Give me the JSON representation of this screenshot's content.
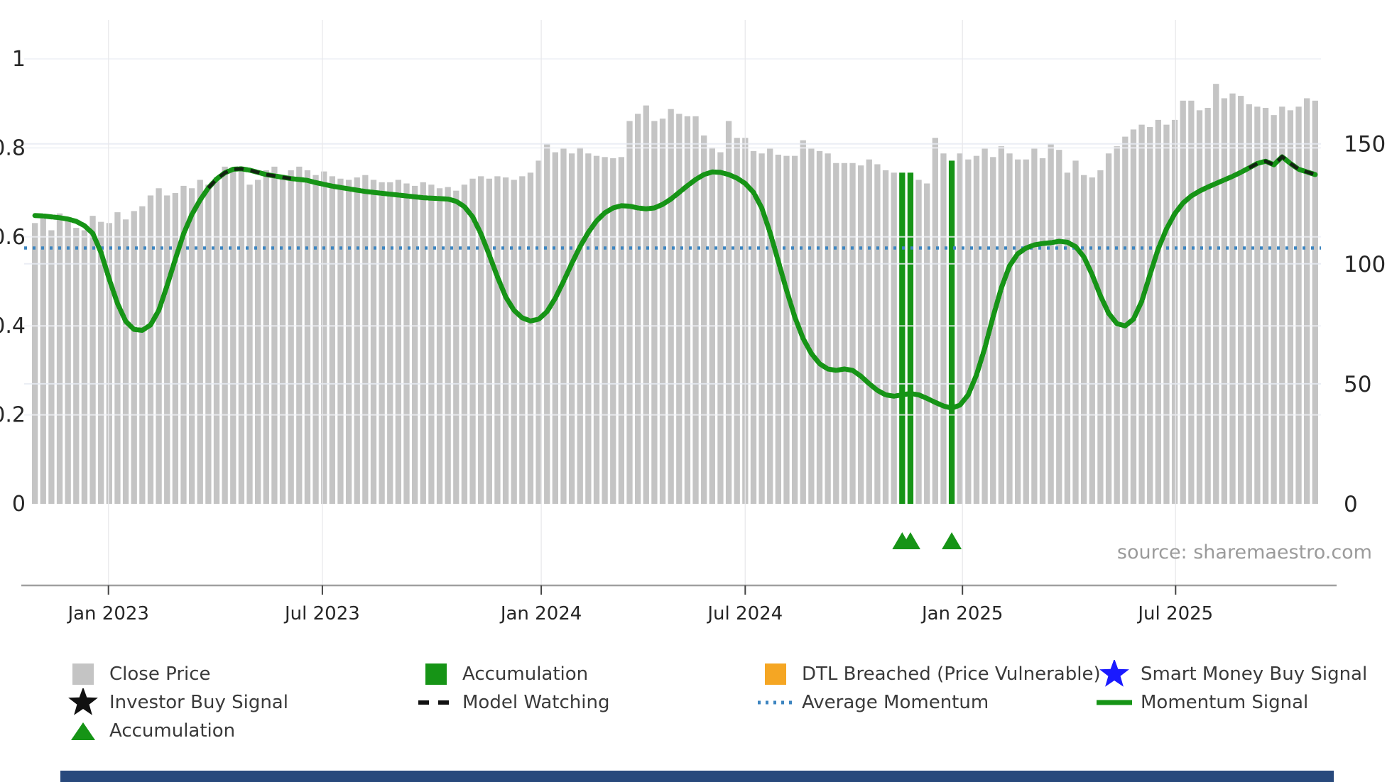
{
  "source_note": "source: sharemaestro.com",
  "colors": {
    "close_price": "#c4c4c4",
    "accumulation": "#169416",
    "momentum_signal": "#169416",
    "average_momentum": "#3d85c0",
    "model_watching": "#111111",
    "dtl_breached": "#f5a623",
    "smart_money": "#1a1aff",
    "investor_buy": "#111111",
    "grid_h": "#e7ebf3",
    "grid_h_light": "#f0f2f7",
    "grid_v": "#e9e9ec",
    "axis_spine": "#a0a0a0",
    "tick_text": "#262626"
  },
  "legend": {
    "columns": [
      {
        "items": [
          {
            "marker": "gray-square",
            "label": "Close Price"
          },
          {
            "marker": "black-star",
            "label": "Investor Buy Signal"
          },
          {
            "marker": "green-triangle",
            "label": "Accumulation"
          }
        ]
      },
      {
        "items": [
          {
            "marker": "green-square",
            "label": "Accumulation"
          },
          {
            "marker": "black-dash",
            "label": "Model Watching"
          }
        ]
      },
      {
        "items": [
          {
            "marker": "orange-square",
            "label": "DTL Breached (Price Vulnerable)"
          },
          {
            "marker": "blue-dotted",
            "label": "Average Momentum"
          }
        ]
      },
      {
        "items": [
          {
            "marker": "blue-star",
            "label": "Smart Money Buy Signal"
          },
          {
            "marker": "green-line",
            "label": "Momentum Signal"
          }
        ]
      }
    ]
  },
  "chart_data": {
    "type": "bar+line",
    "title": "",
    "xlabel": "",
    "ylabel_left": "",
    "ylabel_right": "",
    "grid": true,
    "legend_position": "bottom",
    "x_ticks": [
      {
        "label": "Jan 2023",
        "index": 8.9
      },
      {
        "label": "Jul 2023",
        "index": 34.8
      },
      {
        "label": "Jan 2024",
        "index": 61.3
      },
      {
        "label": "Jul 2024",
        "index": 86.0
      },
      {
        "label": "Jan 2025",
        "index": 112.3
      },
      {
        "label": "Jul 2025",
        "index": 138.1
      }
    ],
    "left_axis": {
      "ticks": [
        0,
        0.2,
        0.4,
        0.6,
        0.8,
        1
      ],
      "tick_labels": [
        "0",
        "0.2",
        "0.4",
        "0.6",
        "0.8",
        "1"
      ],
      "range": [
        0,
        1
      ]
    },
    "right_axis": {
      "ticks": [
        0,
        50,
        100,
        150
      ],
      "tick_labels": [
        "0",
        "50",
        "100",
        "150"
      ],
      "price_at_left_1": 185.4
    },
    "average_momentum": 0.575,
    "series": [
      {
        "name": "Close Price",
        "type": "bar",
        "axis": "right",
        "values": [
          117,
          119.5,
          114,
          121,
          118.5,
          115,
          114,
          120,
          117.5,
          117,
          121.5,
          118.5,
          122,
          124,
          128.5,
          131.5,
          128.5,
          129.5,
          132.5,
          131.5,
          135,
          133,
          136,
          140.5,
          139.5,
          139,
          133,
          135,
          139,
          140.5,
          137,
          139,
          140.5,
          139,
          137,
          138.5,
          136.5,
          135.5,
          135,
          136,
          137,
          135,
          134,
          134,
          135,
          133.5,
          132.5,
          134,
          133,
          131.5,
          132,
          130.5,
          133,
          135.5,
          136.5,
          135.5,
          136.5,
          136,
          135,
          136.5,
          138,
          143,
          150,
          146.5,
          148,
          146,
          148.5,
          146,
          145,
          144.5,
          144,
          144.5,
          159.5,
          162.5,
          166,
          159.5,
          160.5,
          164.5,
          162.5,
          161.5,
          161.5,
          153.5,
          148.5,
          146.5,
          159.5,
          152.5,
          152.5,
          147,
          146,
          148,
          145.5,
          145,
          145,
          151.5,
          148,
          147,
          146,
          142,
          142,
          142,
          141,
          143.5,
          141.5,
          139,
          138,
          138,
          138,
          135,
          133.5,
          152.5,
          146,
          143,
          146,
          143.5,
          145,
          148,
          144.5,
          149,
          146,
          143.5,
          143.5,
          148,
          144,
          150,
          147.5,
          138,
          143,
          137,
          136,
          139,
          146,
          149,
          153,
          156,
          158,
          157,
          160,
          158,
          160,
          168,
          168,
          164,
          165,
          175,
          169,
          171,
          170,
          166.5,
          165.5,
          165,
          162,
          165.5,
          164,
          165.5,
          169,
          168
        ]
      },
      {
        "name": "Momentum Signal",
        "type": "line",
        "axis": "left",
        "values": [
          0.648,
          0.647,
          0.645,
          0.643,
          0.64,
          0.635,
          0.625,
          0.608,
          0.565,
          0.505,
          0.45,
          0.41,
          0.392,
          0.39,
          0.402,
          0.435,
          0.49,
          0.55,
          0.607,
          0.65,
          0.683,
          0.71,
          0.73,
          0.744,
          0.752,
          0.753,
          0.75,
          0.745,
          0.74,
          0.737,
          0.734,
          0.731,
          0.729,
          0.727,
          0.722,
          0.718,
          0.714,
          0.711,
          0.708,
          0.705,
          0.702,
          0.7,
          0.698,
          0.696,
          0.694,
          0.692,
          0.69,
          0.688,
          0.687,
          0.686,
          0.685,
          0.68,
          0.668,
          0.645,
          0.607,
          0.56,
          0.51,
          0.465,
          0.435,
          0.418,
          0.411,
          0.415,
          0.432,
          0.462,
          0.5,
          0.54,
          0.578,
          0.61,
          0.636,
          0.654,
          0.665,
          0.67,
          0.669,
          0.665,
          0.663,
          0.665,
          0.673,
          0.685,
          0.7,
          0.715,
          0.729,
          0.74,
          0.746,
          0.745,
          0.74,
          0.732,
          0.72,
          0.7,
          0.665,
          0.61,
          0.545,
          0.48,
          0.42,
          0.372,
          0.338,
          0.315,
          0.303,
          0.3,
          0.303,
          0.3,
          0.287,
          0.27,
          0.255,
          0.245,
          0.242,
          0.245,
          0.248,
          0.245,
          0.237,
          0.228,
          0.22,
          0.215,
          0.222,
          0.245,
          0.29,
          0.35,
          0.42,
          0.485,
          0.535,
          0.562,
          0.575,
          0.582,
          0.585,
          0.587,
          0.59,
          0.588,
          0.578,
          0.555,
          0.515,
          0.468,
          0.428,
          0.405,
          0.4,
          0.415,
          0.455,
          0.515,
          0.573,
          0.618,
          0.652,
          0.676,
          0.692,
          0.703,
          0.712,
          0.72,
          0.728,
          0.736,
          0.745,
          0.755,
          0.765,
          0.77,
          0.762,
          0.78,
          0.765,
          0.752,
          0.746,
          0.74
        ]
      }
    ],
    "accumulation_bar_indices": [
      105,
      106,
      111
    ],
    "accumulation_marker_indices": [
      105,
      106,
      111
    ],
    "model_watching_index_ranges": [
      [
        21,
        31
      ],
      [
        147,
        155
      ]
    ]
  }
}
